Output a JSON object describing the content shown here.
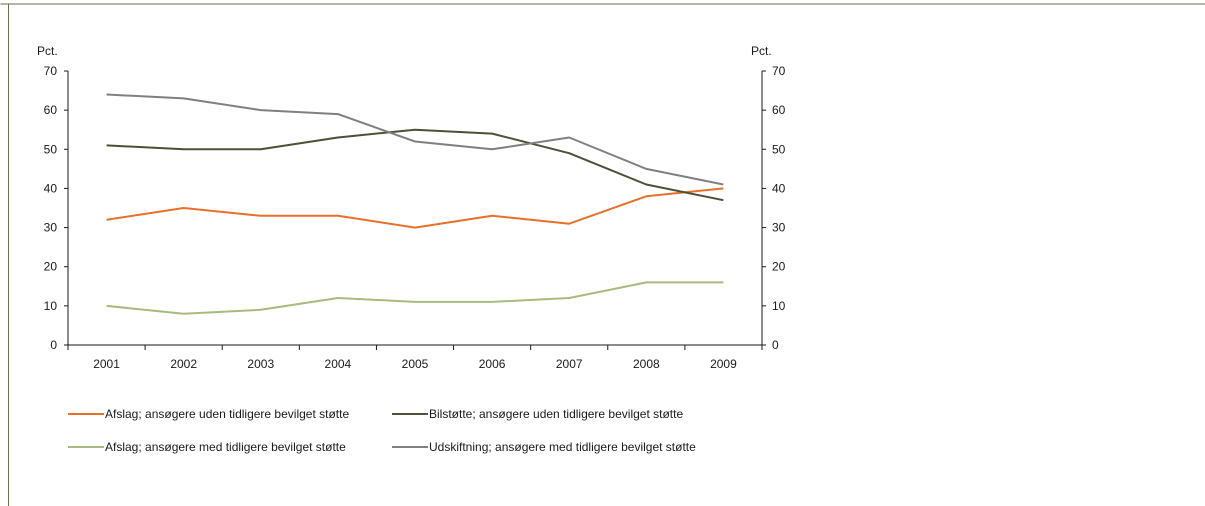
{
  "chart_data": {
    "type": "line",
    "left_unit": "Pct.",
    "right_unit": "Pct.",
    "ylim": [
      0,
      70
    ],
    "yticks": [
      0,
      10,
      20,
      30,
      40,
      50,
      60,
      70
    ],
    "categories": [
      "2001",
      "2002",
      "2003",
      "2004",
      "2005",
      "2006",
      "2007",
      "2008",
      "2009"
    ],
    "grid": false,
    "legend_position": "bottom",
    "series": [
      {
        "name": "Afslag; ansøgere uden tidligere bevilget støtte",
        "color": "#e8702a",
        "values": [
          32,
          35,
          33,
          33,
          30,
          33,
          31,
          38,
          40
        ]
      },
      {
        "name": "Bilstøtte; ansøgere uden tidligere bevilget støtte",
        "color": "#4f4f3a",
        "values": [
          51,
          50,
          50,
          53,
          55,
          54,
          49,
          41,
          37
        ]
      },
      {
        "name": "Afslag; ansøgere med tidligere bevilget støtte",
        "color": "#a9bb7c",
        "values": [
          10,
          8,
          9,
          12,
          11,
          11,
          12,
          16,
          16
        ]
      },
      {
        "name": "Udskiftning; ansøgere med tidligere bevilget støtte",
        "color": "#808080",
        "values": [
          64,
          63,
          60,
          59,
          52,
          50,
          53,
          45,
          41
        ]
      }
    ]
  },
  "colors": {
    "frame": "#6b6b4d",
    "axis": "#1a1a1a"
  }
}
